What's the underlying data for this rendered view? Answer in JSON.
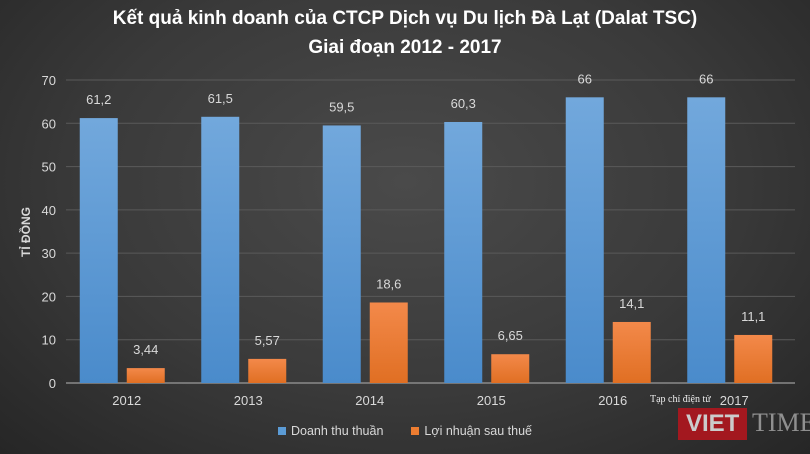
{
  "chart_data": {
    "type": "bar",
    "title": [
      "Kết quả kinh doanh của CTCP Dịch vụ Du lịch Đà Lạt (Dalat TSC)",
      "Giai đoạn 2012 - 2017"
    ],
    "ylabel": "TỈ ĐỒNG",
    "xlabel": "",
    "ylim": [
      0,
      70
    ],
    "yticks": [
      0,
      10,
      20,
      30,
      40,
      50,
      60,
      70
    ],
    "grid": true,
    "legend_position": "bottom",
    "categories": [
      "2012",
      "2013",
      "2014",
      "2015",
      "2016",
      "2017"
    ],
    "series": [
      {
        "name": "Doanh thu thuần",
        "color": "#5b9bd5",
        "values": [
          61.2,
          61.5,
          59.5,
          60.3,
          66,
          66
        ],
        "labels": [
          "61,2",
          "61,5",
          "59,5",
          "60,3",
          "66",
          "66"
        ]
      },
      {
        "name": "Lợi nhuận sau thuế",
        "color": "#ed7d31",
        "values": [
          3.44,
          5.57,
          18.6,
          6.65,
          14.1,
          11.1
        ],
        "labels": [
          "3,44",
          "5,57",
          "18,6",
          "6,65",
          "14,1",
          "11,1"
        ]
      }
    ]
  },
  "watermark": {
    "tagline": "Tạp chí điện tử",
    "brand_left": "VIET",
    "brand_right": "TIMES"
  }
}
